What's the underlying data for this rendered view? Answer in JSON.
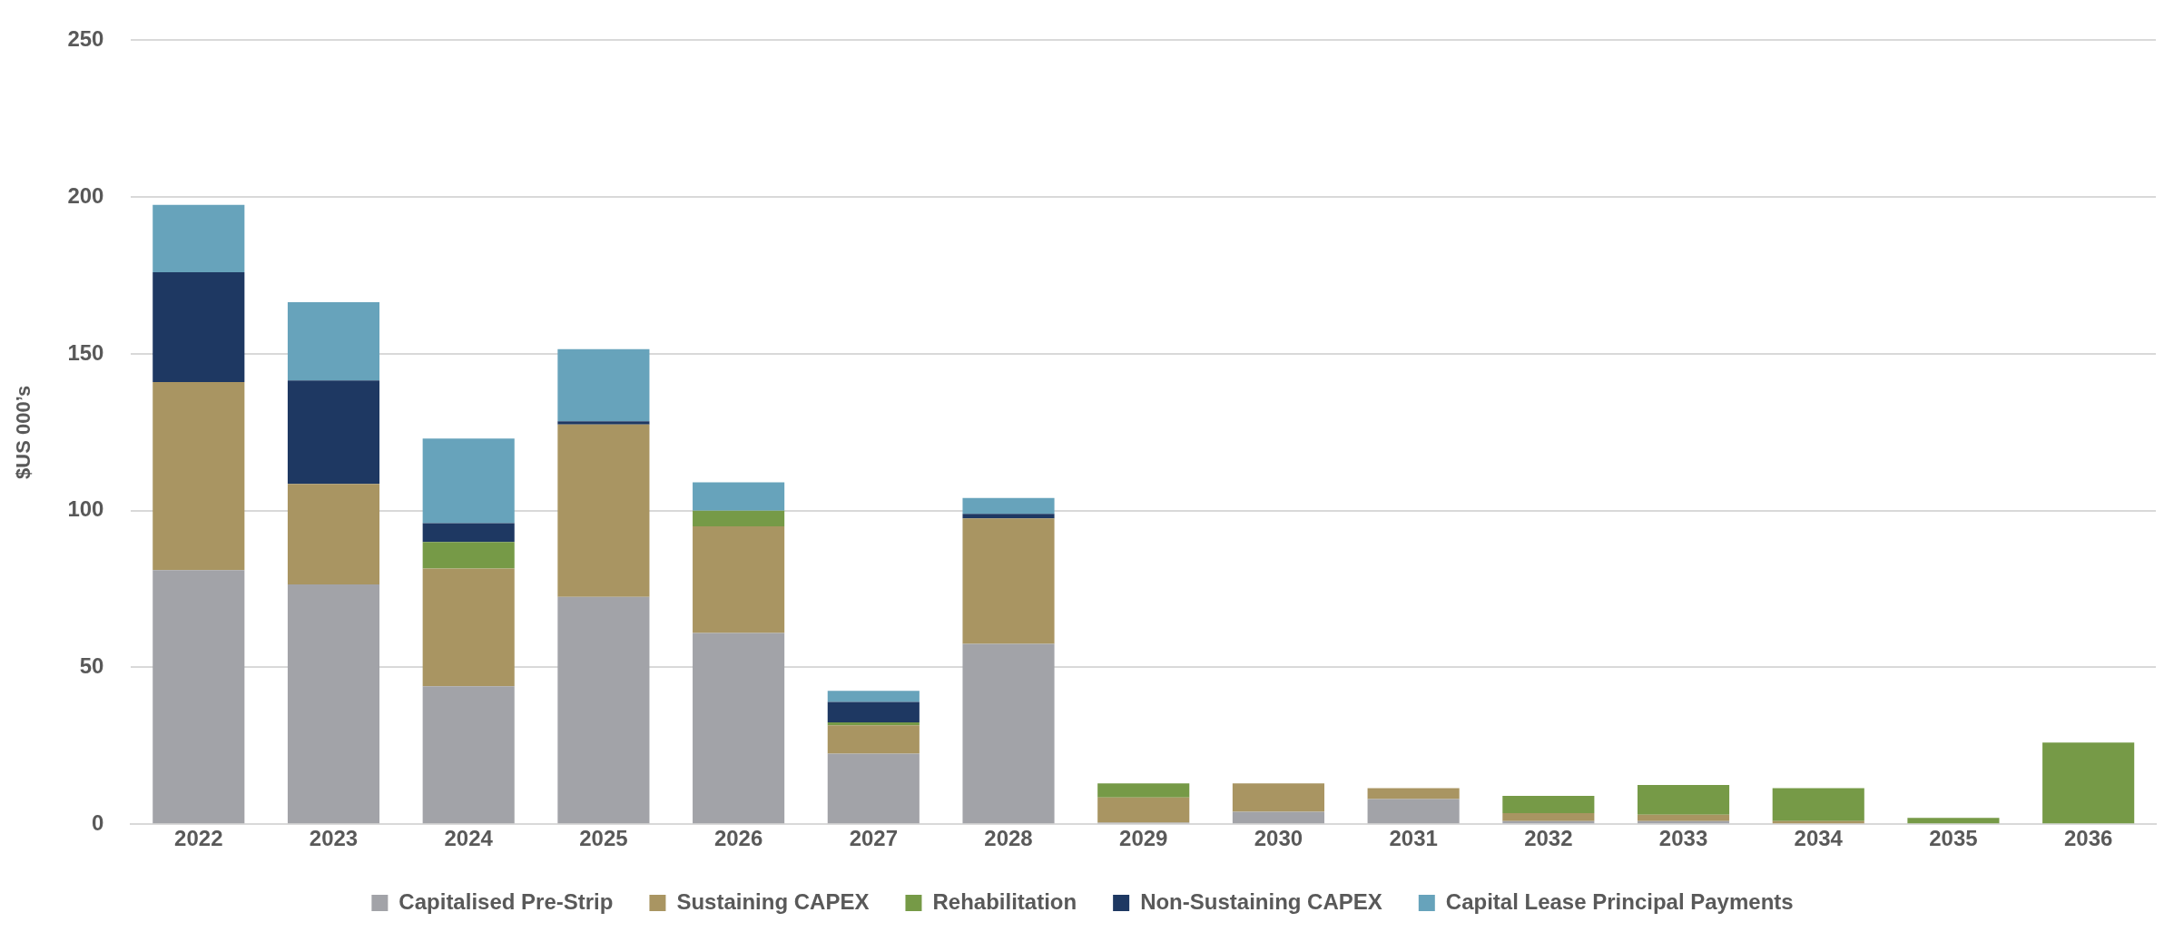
{
  "chart_data": {
    "type": "bar",
    "stacked": true,
    "ylabel": "$US 000’s",
    "categories": [
      "2022",
      "2023",
      "2024",
      "2025",
      "2026",
      "2027",
      "2028",
      "2029",
      "2030",
      "2031",
      "2032",
      "2033",
      "2034",
      "2035",
      "2036"
    ],
    "series": [
      {
        "name": "Capitalised Pre-Strip",
        "color": "#a2a3a8",
        "values": [
          81,
          76.5,
          44,
          72.5,
          61,
          22.5,
          57.5,
          0.5,
          4,
          8,
          1,
          1,
          0,
          0,
          0
        ]
      },
      {
        "name": "Sustaining CAPEX",
        "color": "#a99562",
        "values": [
          60,
          32,
          37.5,
          55,
          34,
          9,
          40,
          8,
          9,
          3.5,
          2.5,
          2,
          1,
          0,
          0
        ]
      },
      {
        "name": "Rehabilitation",
        "color": "#769a47",
        "values": [
          0,
          0,
          8.5,
          0,
          5,
          1,
          0,
          4.5,
          0,
          0,
          5.5,
          9.5,
          10.5,
          2,
          26
        ]
      },
      {
        "name": "Non-Sustaining CAPEX",
        "color": "#1e3862",
        "values": [
          35,
          33,
          6,
          1,
          0,
          6.5,
          1.5,
          0,
          0,
          0,
          0,
          0,
          0,
          0,
          0
        ]
      },
      {
        "name": "Capital Lease Principal Payments",
        "color": "#67a3bb",
        "values": [
          21.5,
          25,
          27,
          23,
          9,
          3.5,
          5,
          0,
          0,
          0,
          0,
          0,
          0,
          0,
          0
        ]
      }
    ],
    "ylim": [
      0,
      250
    ],
    "yticks": [
      0,
      50,
      100,
      150,
      200,
      250
    ],
    "grid": "y",
    "legend": "bottom"
  }
}
